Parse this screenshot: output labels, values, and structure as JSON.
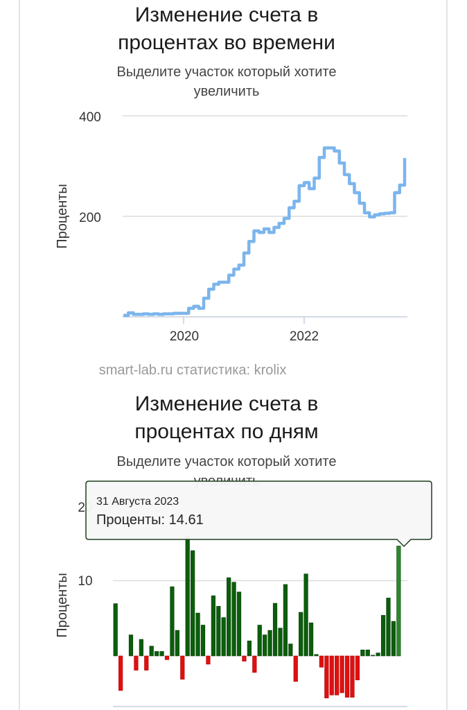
{
  "chart_data": [
    {
      "type": "line",
      "title": "Изменение счета в процентах во времени",
      "title_lines": [
        "Изменение счета в",
        "процентах во времени"
      ],
      "subtitle_lines": [
        "Выделите участок который хотите",
        "увеличить"
      ],
      "ylabel": "Проценты",
      "xlabel": "",
      "ylim": [
        0,
        400
      ],
      "yticks": [
        "200",
        "400"
      ],
      "xticks": [
        "2020",
        "2022"
      ],
      "grid": true,
      "color": "#7cb5ec",
      "x": [
        "2019-01",
        "2019-02",
        "2019-03",
        "2019-04",
        "2019-05",
        "2019-06",
        "2019-07",
        "2019-08",
        "2019-09",
        "2019-10",
        "2019-11",
        "2019-12",
        "2020-01",
        "2020-02",
        "2020-03",
        "2020-04",
        "2020-05",
        "2020-06",
        "2020-07",
        "2020-08",
        "2020-09",
        "2020-10",
        "2020-11",
        "2020-12",
        "2021-01",
        "2021-02",
        "2021-03",
        "2021-04",
        "2021-05",
        "2021-06",
        "2021-07",
        "2021-08",
        "2021-09",
        "2021-10",
        "2021-11",
        "2021-12",
        "2022-01",
        "2022-02",
        "2022-03",
        "2022-04",
        "2022-05",
        "2022-06",
        "2022-07",
        "2022-08",
        "2022-09",
        "2022-10",
        "2022-11",
        "2022-12",
        "2023-01",
        "2023-02",
        "2023-03",
        "2023-04",
        "2023-05",
        "2023-06",
        "2023-07",
        "2023-08",
        "2023-08-31"
      ],
      "values": [
        3,
        8,
        5,
        5,
        6,
        5,
        6,
        5,
        6,
        6,
        7,
        7,
        7,
        17,
        21,
        17,
        37,
        55,
        65,
        69,
        69,
        83,
        95,
        103,
        127,
        150,
        171,
        168,
        175,
        168,
        178,
        186,
        196,
        217,
        230,
        261,
        267,
        255,
        276,
        317,
        336,
        336,
        330,
        306,
        283,
        265,
        247,
        226,
        207,
        199,
        203,
        205,
        206,
        207,
        247,
        262,
        316
      ]
    },
    {
      "type": "bar",
      "title": "Изменение счета в процентах по дням",
      "title_lines": [
        "Изменение счета в",
        "процентах по дням"
      ],
      "subtitle_lines": [
        "Выделите участок который хотите",
        "увеличить"
      ],
      "ylabel": "Проценты",
      "xlabel": "",
      "yticks": [
        "10",
        "20"
      ],
      "grid": true,
      "positive_color": "#0b5e0b",
      "negative_color": "#e01010",
      "highlight_color": "#2a8a2a",
      "categories": [
        "2019-01",
        "2019-02",
        "2019-03",
        "2019-04",
        "2019-05",
        "2019-06",
        "2019-07",
        "2019-08",
        "2019-09",
        "2019-10",
        "2019-11",
        "2019-12",
        "2020-01",
        "2020-02",
        "2020-03",
        "2020-04",
        "2020-05",
        "2020-06",
        "2020-07",
        "2020-08",
        "2020-09",
        "2020-10",
        "2020-11",
        "2020-12",
        "2021-01",
        "2021-02",
        "2021-03",
        "2021-04",
        "2021-05",
        "2021-06",
        "2021-07",
        "2021-08",
        "2021-09",
        "2021-10",
        "2021-11",
        "2021-12",
        "2022-01",
        "2022-02",
        "2022-03",
        "2022-04",
        "2022-05",
        "2022-06",
        "2022-07",
        "2022-08",
        "2022-09",
        "2022-10",
        "2022-11",
        "2022-12",
        "2023-01",
        "2023-02",
        "2023-03",
        "2023-04",
        "2023-05",
        "2023-06",
        "2023-07",
        "2023-08"
      ],
      "values": [
        6.95,
        -4.6,
        0,
        2.8,
        -1.9,
        2.2,
        -1.9,
        1.3,
        0.6,
        0.6,
        -0.5,
        9.2,
        3.4,
        -3.1,
        15.9,
        14.0,
        5.7,
        4.1,
        -1.1,
        8.0,
        6.6,
        5.1,
        10.4,
        9.8,
        8.5,
        -0.7,
        2.0,
        -2.2,
        4.1,
        2.8,
        3.4,
        7.0,
        3.7,
        9.5,
        1.6,
        -3.4,
        5.8,
        10.9,
        4.4,
        0.2,
        -1.5,
        -5.6,
        -5.2,
        -5.2,
        -4.9,
        -5.5,
        -5.5,
        -3.2,
        0.8,
        0.8,
        0.1,
        0.4,
        5.4,
        7.7,
        4.6,
        14.61
      ],
      "tooltip": {
        "date": "31 Августа 2023",
        "label": "Проценты: 14.61"
      }
    }
  ],
  "credit": "smart-lab.ru статистика: krolix"
}
